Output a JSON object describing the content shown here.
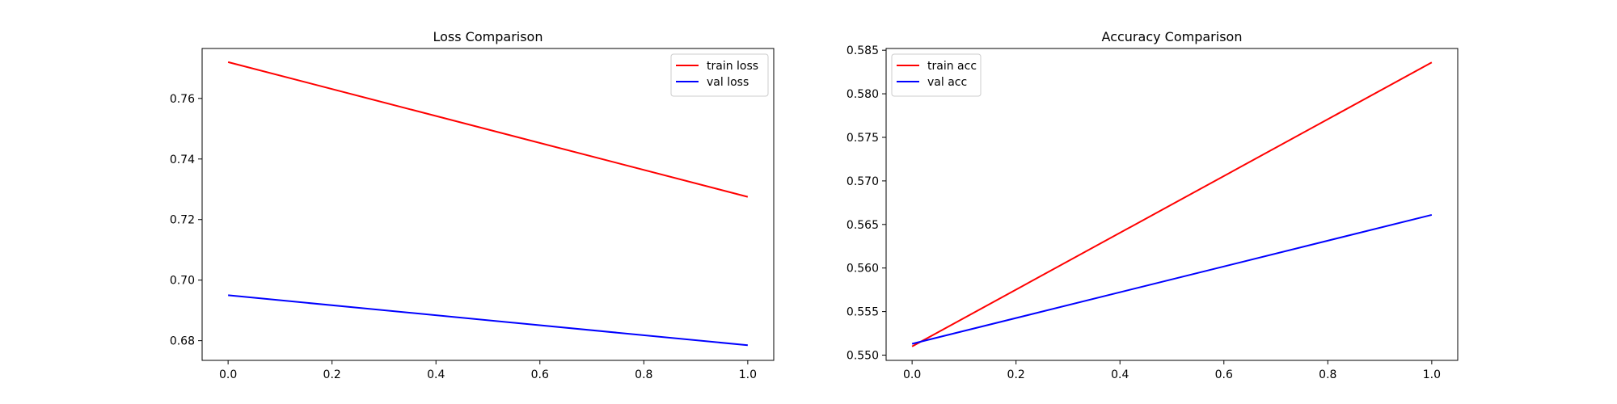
{
  "chart_data": [
    {
      "type": "line",
      "title": "Loss Comparison",
      "xlabel": "",
      "ylabel": "",
      "xlim": [
        -0.05,
        1.05
      ],
      "ylim": [
        0.6735,
        0.7765
      ],
      "xticks": [
        0.0,
        0.2,
        0.4,
        0.6,
        0.8,
        1.0
      ],
      "xtick_labels": [
        "0.0",
        "0.2",
        "0.4",
        "0.6",
        "0.8",
        "1.0"
      ],
      "yticks": [
        0.68,
        0.7,
        0.72,
        0.74,
        0.76
      ],
      "ytick_labels": [
        "0.68",
        "0.70",
        "0.72",
        "0.74",
        "0.76"
      ],
      "x": [
        0,
        1
      ],
      "series": [
        {
          "name": "train loss",
          "color": "#ff0000",
          "values": [
            0.772,
            0.7275
          ]
        },
        {
          "name": "val loss",
          "color": "#0000ff",
          "values": [
            0.695,
            0.6785
          ]
        }
      ],
      "grid": false,
      "legend": "upper-right"
    },
    {
      "type": "line",
      "title": "Accuracy Comparison",
      "xlabel": "",
      "ylabel": "",
      "xlim": [
        -0.05,
        1.05
      ],
      "ylim": [
        0.5494,
        0.5852
      ],
      "xticks": [
        0.0,
        0.2,
        0.4,
        0.6,
        0.8,
        1.0
      ],
      "xtick_labels": [
        "0.0",
        "0.2",
        "0.4",
        "0.6",
        "0.8",
        "1.0"
      ],
      "yticks": [
        0.55,
        0.555,
        0.56,
        0.565,
        0.57,
        0.575,
        0.58,
        0.585
      ],
      "ytick_labels": [
        "0.550",
        "0.555",
        "0.560",
        "0.565",
        "0.570",
        "0.575",
        "0.580",
        "0.585"
      ],
      "x": [
        0,
        1
      ],
      "series": [
        {
          "name": "train acc",
          "color": "#ff0000",
          "values": [
            0.551,
            0.5836
          ]
        },
        {
          "name": "val acc",
          "color": "#0000ff",
          "values": [
            0.5513,
            0.5661
          ]
        }
      ],
      "grid": false,
      "legend": "upper-left"
    }
  ]
}
